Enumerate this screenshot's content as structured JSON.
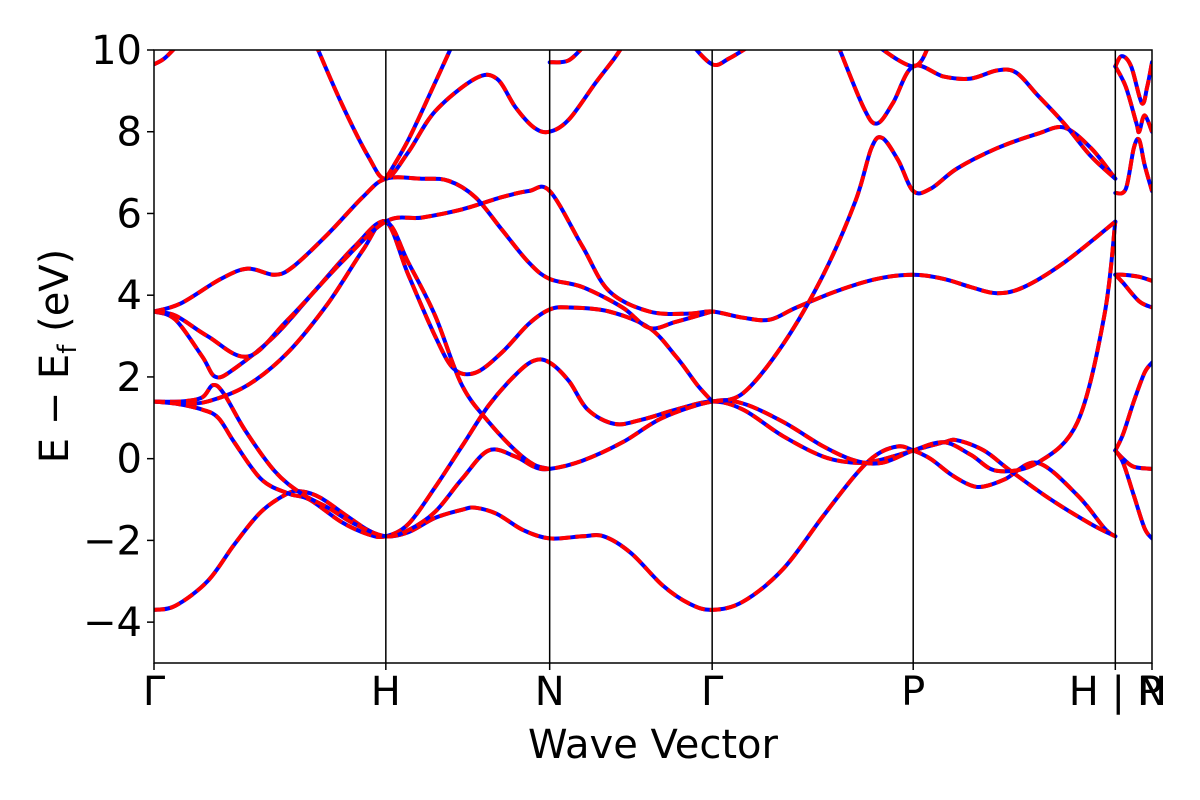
{
  "chart_data": {
    "type": "line",
    "xlabel": "Wave Vector",
    "ylabel": "E − E",
    "ylabel_sub": "f",
    "ylabel_unit": " (eV)",
    "ylim": [
      -5,
      10
    ],
    "yticks": [
      "−4",
      "−2",
      "0",
      "2",
      "4",
      "6",
      "8",
      "10"
    ],
    "ytick_values": [
      -4,
      -2,
      0,
      2,
      4,
      6,
      8,
      10
    ],
    "xlim": [
      0,
      3.728
    ],
    "high_symmetry_points": [
      {
        "label": "Γ",
        "x": 0
      },
      {
        "label": "H",
        "x": 0.866
      },
      {
        "label": "N",
        "x": 1.478
      },
      {
        "label": "Γ",
        "x": 2.085
      },
      {
        "label": "P",
        "x": 2.836
      },
      {
        "label": "H | P",
        "x": 3.591
      },
      {
        "label": "N",
        "x": 3.728
      }
    ],
    "grid": false,
    "legend": "none",
    "colors": {
      "series_a": "#ff0000",
      "series_b": "#0000ff",
      "vlines": "#000000"
    },
    "series": [
      {
        "points": [
          [
            0,
            -3.7
          ],
          [
            0.08,
            -3.6
          ],
          [
            0.2,
            -3.0
          ],
          [
            0.3,
            -2.1
          ],
          [
            0.4,
            -1.3
          ],
          [
            0.5,
            -0.85
          ],
          [
            0.55,
            -0.8
          ],
          [
            0.62,
            -0.95
          ],
          [
            0.72,
            -1.4
          ],
          [
            0.8,
            -1.75
          ],
          [
            0.866,
            -1.9
          ],
          [
            0.95,
            -1.8
          ],
          [
            1.05,
            -1.45
          ],
          [
            1.15,
            -1.25
          ],
          [
            1.2,
            -1.2
          ],
          [
            1.28,
            -1.35
          ],
          [
            1.38,
            -1.75
          ],
          [
            1.478,
            -1.95
          ],
          [
            1.6,
            -1.9
          ],
          [
            1.68,
            -1.9
          ],
          [
            1.78,
            -2.3
          ],
          [
            1.9,
            -3.1
          ],
          [
            2.0,
            -3.55
          ],
          [
            2.085,
            -3.7
          ],
          [
            2.2,
            -3.5
          ],
          [
            2.35,
            -2.7
          ],
          [
            2.5,
            -1.4
          ],
          [
            2.62,
            -0.4
          ],
          [
            2.7,
            0.1
          ],
          [
            2.78,
            0.3
          ],
          [
            2.836,
            0.2
          ],
          [
            2.9,
            0.0
          ],
          [
            2.98,
            -0.4
          ],
          [
            3.05,
            -0.65
          ],
          [
            3.1,
            -0.68
          ],
          [
            3.18,
            -0.5
          ],
          [
            3.3,
            -0.1
          ],
          [
            3.45,
            -0.9
          ],
          [
            3.55,
            -1.7
          ],
          [
            3.591,
            -1.9
          ]
        ]
      },
      {
        "points": [
          [
            0,
            1.4
          ],
          [
            0.08,
            1.35
          ],
          [
            0.18,
            1.2
          ],
          [
            0.24,
            1.0
          ],
          [
            0.3,
            0.4
          ],
          [
            0.4,
            -0.5
          ],
          [
            0.5,
            -0.85
          ],
          [
            0.58,
            -1.0
          ],
          [
            0.7,
            -1.55
          ],
          [
            0.8,
            -1.85
          ],
          [
            0.866,
            -1.9
          ],
          [
            0.95,
            -1.6
          ],
          [
            1.05,
            -0.7
          ],
          [
            1.15,
            0.3
          ],
          [
            1.25,
            1.3
          ],
          [
            1.35,
            2.05
          ],
          [
            1.42,
            2.4
          ],
          [
            1.478,
            2.35
          ],
          [
            1.55,
            1.9
          ],
          [
            1.62,
            1.2
          ],
          [
            1.72,
            0.85
          ],
          [
            1.82,
            0.95
          ],
          [
            1.95,
            1.2
          ],
          [
            2.085,
            1.4
          ],
          [
            2.2,
            1.2
          ],
          [
            2.35,
            0.55
          ],
          [
            2.5,
            0.05
          ],
          [
            2.62,
            -0.1
          ],
          [
            2.7,
            -0.05
          ],
          [
            2.836,
            0.2
          ],
          [
            2.95,
            0.4
          ],
          [
            3.0,
            0.45
          ],
          [
            3.1,
            0.2
          ],
          [
            3.2,
            -0.3
          ],
          [
            3.35,
            -1.0
          ],
          [
            3.5,
            -1.6
          ],
          [
            3.591,
            -1.9
          ]
        ]
      },
      {
        "points": [
          [
            0,
            1.4
          ],
          [
            0.1,
            1.4
          ],
          [
            0.18,
            1.5
          ],
          [
            0.22,
            1.8
          ],
          [
            0.26,
            1.6
          ],
          [
            0.34,
            0.7
          ],
          [
            0.45,
            -0.3
          ],
          [
            0.55,
            -0.85
          ],
          [
            0.65,
            -1.2
          ],
          [
            0.75,
            -1.6
          ],
          [
            0.866,
            -1.9
          ],
          [
            0.95,
            -1.75
          ],
          [
            1.05,
            -1.3
          ],
          [
            1.15,
            -0.5
          ],
          [
            1.25,
            0.2
          ],
          [
            1.35,
            0.05
          ],
          [
            1.42,
            -0.2
          ],
          [
            1.478,
            -0.25
          ],
          [
            1.6,
            -0.05
          ],
          [
            1.75,
            0.4
          ],
          [
            1.9,
            1.0
          ],
          [
            2.085,
            1.4
          ],
          [
            2.2,
            1.35
          ],
          [
            2.35,
            0.9
          ],
          [
            2.5,
            0.3
          ],
          [
            2.62,
            -0.05
          ],
          [
            2.72,
            -0.1
          ],
          [
            2.836,
            0.2
          ],
          [
            2.95,
            0.4
          ],
          [
            3.05,
            0.1
          ],
          [
            3.15,
            -0.3
          ],
          [
            3.3,
            -0.1
          ],
          [
            3.45,
            0.9
          ],
          [
            3.55,
            3.5
          ],
          [
            3.591,
            5.8
          ]
        ]
      },
      {
        "points": [
          [
            0,
            1.4
          ],
          [
            0.1,
            1.35
          ],
          [
            0.2,
            1.4
          ],
          [
            0.35,
            1.8
          ],
          [
            0.5,
            2.6
          ],
          [
            0.65,
            3.8
          ],
          [
            0.78,
            5.1
          ],
          [
            0.866,
            5.8
          ],
          [
            0.95,
            4.5
          ],
          [
            1.05,
            3.0
          ],
          [
            1.12,
            2.2
          ],
          [
            1.2,
            2.1
          ],
          [
            1.3,
            2.6
          ],
          [
            1.4,
            3.3
          ],
          [
            1.478,
            3.65
          ],
          [
            1.55,
            3.7
          ],
          [
            1.7,
            3.6
          ],
          [
            1.85,
            3.2
          ],
          [
            1.95,
            2.5
          ],
          [
            2.03,
            1.8
          ],
          [
            2.085,
            1.4
          ]
        ]
      },
      {
        "points": [
          [
            0,
            3.6
          ],
          [
            0.08,
            3.4
          ],
          [
            0.18,
            2.5
          ],
          [
            0.23,
            2.0
          ],
          [
            0.3,
            2.2
          ],
          [
            0.45,
            3.0
          ],
          [
            0.6,
            4.1
          ],
          [
            0.75,
            5.2
          ],
          [
            0.866,
            5.8
          ],
          [
            0.95,
            4.8
          ],
          [
            1.05,
            3.5
          ],
          [
            1.15,
            1.8
          ],
          [
            1.25,
            0.9
          ],
          [
            1.35,
            0.2
          ],
          [
            1.42,
            -0.15
          ],
          [
            1.478,
            -0.25
          ]
        ]
      },
      {
        "points": [
          [
            0,
            3.6
          ],
          [
            0.1,
            3.8
          ],
          [
            0.25,
            4.4
          ],
          [
            0.35,
            4.65
          ],
          [
            0.45,
            4.5
          ],
          [
            0.52,
            4.7
          ],
          [
            0.65,
            5.5
          ],
          [
            0.78,
            6.4
          ],
          [
            0.866,
            6.85
          ],
          [
            1.0,
            6.85
          ],
          [
            1.1,
            6.8
          ],
          [
            1.2,
            6.4
          ],
          [
            1.3,
            5.6
          ],
          [
            1.4,
            4.8
          ],
          [
            1.478,
            4.4
          ],
          [
            1.6,
            4.2
          ],
          [
            1.75,
            3.7
          ],
          [
            1.85,
            3.2
          ],
          [
            1.95,
            3.35
          ],
          [
            2.085,
            3.6
          ]
        ]
      },
      {
        "points": [
          [
            0,
            3.6
          ],
          [
            0.08,
            3.5
          ],
          [
            0.2,
            3.0
          ],
          [
            0.35,
            2.5
          ],
          [
            0.5,
            3.4
          ],
          [
            0.7,
            4.8
          ],
          [
            0.866,
            5.8
          ],
          [
            1.0,
            5.9
          ],
          [
            1.15,
            6.1
          ],
          [
            1.3,
            6.4
          ],
          [
            1.4,
            6.55
          ],
          [
            1.478,
            6.55
          ],
          [
            1.6,
            5.2
          ],
          [
            1.7,
            4.1
          ],
          [
            1.85,
            3.6
          ],
          [
            2.0,
            3.55
          ],
          [
            2.085,
            3.6
          ],
          [
            2.2,
            3.45
          ],
          [
            2.3,
            3.4
          ],
          [
            2.4,
            3.7
          ],
          [
            2.55,
            4.1
          ],
          [
            2.7,
            4.4
          ],
          [
            2.836,
            4.5
          ],
          [
            2.95,
            4.4
          ],
          [
            3.05,
            4.2
          ],
          [
            3.15,
            4.05
          ],
          [
            3.25,
            4.2
          ],
          [
            3.4,
            4.8
          ],
          [
            3.591,
            5.8
          ]
        ]
      },
      {
        "points": [
          [
            0.6,
            10.2
          ],
          [
            0.7,
            8.7
          ],
          [
            0.8,
            7.4
          ],
          [
            0.866,
            6.85
          ],
          [
            0.95,
            7.5
          ],
          [
            1.05,
            8.5
          ],
          [
            1.2,
            9.3
          ],
          [
            1.28,
            9.3
          ],
          [
            1.35,
            8.6
          ],
          [
            1.42,
            8.1
          ],
          [
            1.478,
            8.0
          ],
          [
            1.55,
            8.3
          ],
          [
            1.65,
            9.2
          ],
          [
            1.72,
            9.8
          ],
          [
            1.76,
            10.2
          ]
        ]
      },
      {
        "points": [
          [
            0.866,
            6.85
          ],
          [
            0.95,
            7.8
          ],
          [
            1.05,
            9.2
          ],
          [
            1.12,
            10.2
          ]
        ]
      },
      {
        "points": [
          [
            2.085,
            1.4
          ],
          [
            2.2,
            1.6
          ],
          [
            2.35,
            2.8
          ],
          [
            2.5,
            4.5
          ],
          [
            2.62,
            6.3
          ],
          [
            2.68,
            7.6
          ],
          [
            2.72,
            7.85
          ],
          [
            2.78,
            7.3
          ],
          [
            2.836,
            6.55
          ],
          [
            2.9,
            6.6
          ],
          [
            3.0,
            7.1
          ],
          [
            3.15,
            7.6
          ],
          [
            3.3,
            7.95
          ],
          [
            3.4,
            8.1
          ],
          [
            3.5,
            7.6
          ],
          [
            3.591,
            6.85
          ]
        ]
      },
      {
        "points": [
          [
            2.55,
            10.2
          ],
          [
            2.65,
            8.6
          ],
          [
            2.7,
            8.2
          ],
          [
            2.76,
            8.7
          ],
          [
            2.836,
            9.6
          ],
          [
            2.95,
            9.35
          ],
          [
            3.05,
            9.3
          ],
          [
            3.15,
            9.5
          ],
          [
            3.22,
            9.45
          ],
          [
            3.3,
            8.9
          ],
          [
            3.4,
            8.2
          ],
          [
            3.5,
            7.4
          ],
          [
            3.591,
            6.85
          ]
        ]
      },
      {
        "points": [
          [
            2.68,
            10.2
          ],
          [
            2.836,
            9.6
          ],
          [
            2.9,
            10.2
          ]
        ]
      },
      {
        "points": [
          [
            3.591,
            6.5
          ],
          [
            3.63,
            6.6
          ],
          [
            3.66,
            7.6
          ],
          [
            3.68,
            7.8
          ],
          [
            3.7,
            7.2
          ],
          [
            3.728,
            6.55
          ]
        ]
      },
      {
        "points": [
          [
            3.591,
            4.5
          ],
          [
            3.62,
            4.5
          ],
          [
            3.68,
            4.45
          ],
          [
            3.728,
            4.35
          ]
        ]
      },
      {
        "points": [
          [
            3.591,
            4.5
          ],
          [
            3.62,
            4.3
          ],
          [
            3.68,
            3.85
          ],
          [
            3.728,
            3.7
          ]
        ]
      },
      {
        "points": [
          [
            3.591,
            0.2
          ],
          [
            3.62,
            0.6
          ],
          [
            3.66,
            1.4
          ],
          [
            3.7,
            2.1
          ],
          [
            3.728,
            2.35
          ]
        ]
      },
      {
        "points": [
          [
            3.591,
            0.2
          ],
          [
            3.62,
            0.0
          ],
          [
            3.66,
            -0.2
          ],
          [
            3.728,
            -0.25
          ]
        ]
      },
      {
        "points": [
          [
            3.591,
            0.2
          ],
          [
            3.62,
            -0.1
          ],
          [
            3.66,
            -0.9
          ],
          [
            3.7,
            -1.7
          ],
          [
            3.728,
            -1.95
          ]
        ]
      },
      {
        "points": [
          [
            3.591,
            9.6
          ],
          [
            3.63,
            9.1
          ],
          [
            3.67,
            8.2
          ],
          [
            3.68,
            8.0
          ],
          [
            3.7,
            8.4
          ],
          [
            3.728,
            8.0
          ]
        ]
      },
      {
        "points": [
          [
            3.591,
            9.6
          ],
          [
            3.615,
            9.85
          ],
          [
            3.65,
            9.6
          ],
          [
            3.69,
            8.7
          ],
          [
            3.71,
            9.1
          ],
          [
            3.728,
            9.7
          ]
        ]
      },
      {
        "points": [
          [
            0,
            9.65
          ],
          [
            0.04,
            9.8
          ],
          [
            0.1,
            10.2
          ]
        ]
      },
      {
        "points": [
          [
            1.478,
            9.7
          ],
          [
            1.55,
            9.75
          ],
          [
            1.62,
            10.2
          ]
        ]
      },
      {
        "points": [
          [
            2.0,
            10.2
          ],
          [
            2.085,
            9.65
          ],
          [
            2.15,
            9.8
          ],
          [
            2.25,
            10.2
          ]
        ]
      }
    ]
  }
}
